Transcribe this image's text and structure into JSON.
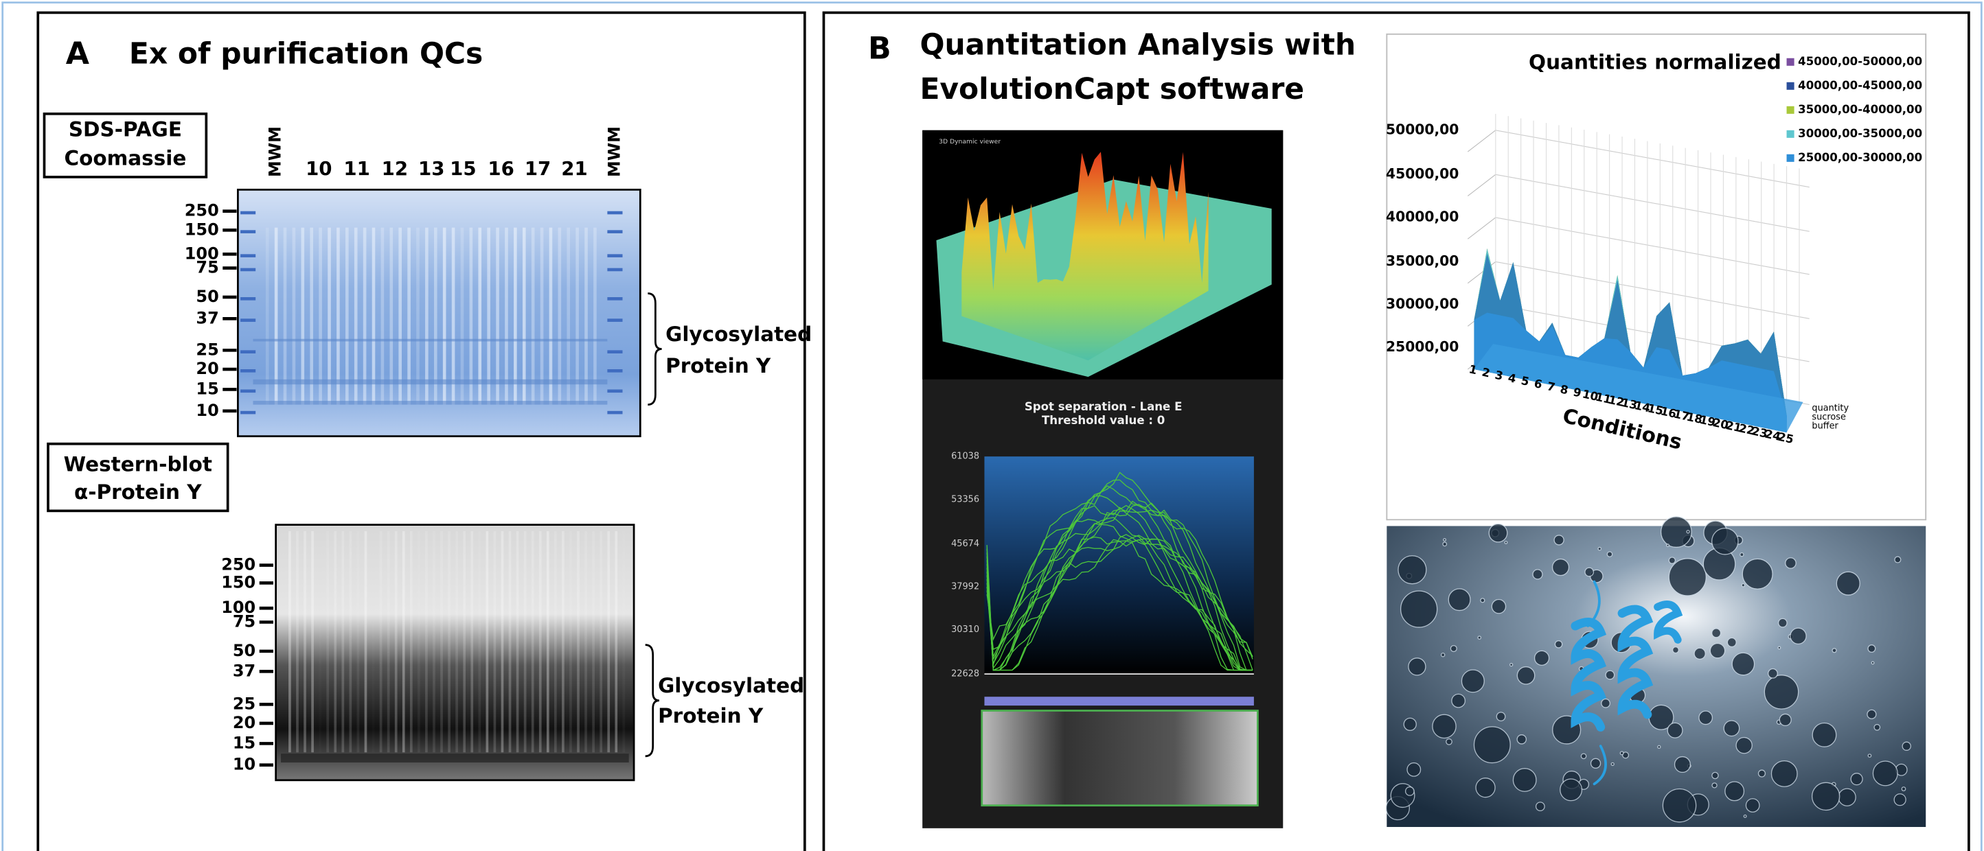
{
  "panel_a": {
    "label": "A",
    "title": "Ex of purification QCs",
    "sds_page": {
      "box_label": [
        "SDS-PAGE",
        "Coomassie"
      ],
      "mwm_label": "MWM",
      "lanes": [
        "10",
        "11",
        "12",
        "13",
        "15",
        "16",
        "17",
        "21"
      ],
      "markers": [
        "250",
        "150",
        "100",
        "75",
        "50",
        "37",
        "25",
        "20",
        "15",
        "10"
      ],
      "bracket_label": [
        "Glycosylated",
        "Protein Y"
      ]
    },
    "western_blot": {
      "box_label": [
        "Western-blot",
        "α-Protein Y"
      ],
      "markers": [
        "250",
        "150",
        "100",
        "75",
        "50",
        "37",
        "25",
        "20",
        "15",
        "10"
      ],
      "bracket_label": [
        "Glycosylated",
        "Protein Y"
      ]
    }
  },
  "panel_b": {
    "label": "B",
    "title": [
      "Quantitation Analysis with",
      "EvolutionCapt software"
    ],
    "viewer": {
      "caption": "3D Dynamic viewer",
      "spot_title": [
        "Spot separation - Lane E",
        "Threshold value : 0"
      ],
      "y_labels": [
        "61038",
        "53356",
        "45674",
        "37992",
        "30310",
        "22628"
      ]
    },
    "chart_3d": {
      "title": "Quantities normalized",
      "legend": [
        "45000,00-50000,00",
        "40000,00-45000,00",
        "35000,00-40000,00",
        "30000,00-35000,00",
        "25000,00-30000,00"
      ],
      "y_labels": [
        "50000,00",
        "45000,00",
        "40000,00",
        "35000,00",
        "30000,00",
        "25000,00"
      ],
      "x_labels": [
        "1",
        "2",
        "3",
        "4",
        "5",
        "6",
        "7",
        "8",
        "9",
        "10",
        "11",
        "12",
        "13",
        "14",
        "15",
        "16",
        "17",
        "18",
        "19",
        "20",
        "21",
        "22",
        "23",
        "24",
        "25"
      ],
      "x_title": "Conditions",
      "depth_labels": [
        "quantity",
        "sucrose",
        "buffer"
      ]
    }
  }
}
